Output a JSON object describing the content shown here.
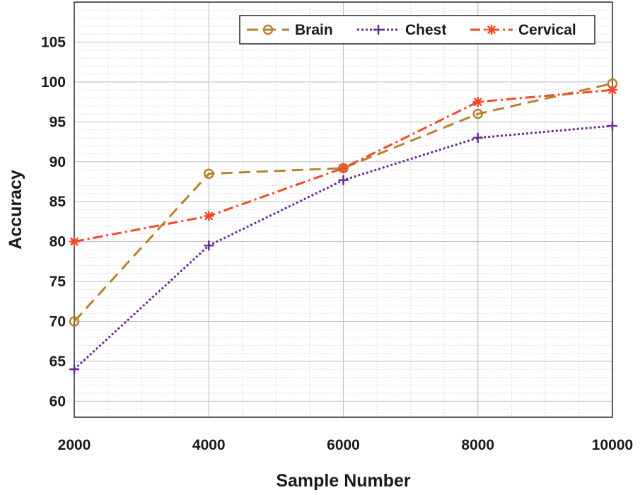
{
  "chart_data": {
    "type": "line",
    "title": "",
    "xlabel": "Sample Number",
    "ylabel": "Accuracy",
    "x": [
      2000,
      4000,
      6000,
      8000,
      10000
    ],
    "xticks": [
      "2000",
      "4000",
      "6000",
      "8000",
      "10000"
    ],
    "yticks": [
      "60",
      "65",
      "70",
      "75",
      "80",
      "85",
      "90",
      "95",
      "100",
      "105"
    ],
    "xlim": [
      2000,
      10000
    ],
    "ylim": [
      58,
      110
    ],
    "grid": true,
    "legend_position": "top-right",
    "series": [
      {
        "name": "Brain",
        "values": [
          70,
          88.5,
          89.2,
          96,
          99.8
        ],
        "color": "#b5832a",
        "line_style": "dashed",
        "marker": "circle"
      },
      {
        "name": "Chest",
        "values": [
          64,
          79.5,
          87.7,
          93,
          94.5
        ],
        "color": "#6a2c9a",
        "line_style": "dotted",
        "marker": "plus"
      },
      {
        "name": "Cervical",
        "values": [
          80,
          83.2,
          89.2,
          97.5,
          99
        ],
        "color": "#ef4a2a",
        "line_style": "dashdot",
        "marker": "asterisk"
      }
    ]
  }
}
